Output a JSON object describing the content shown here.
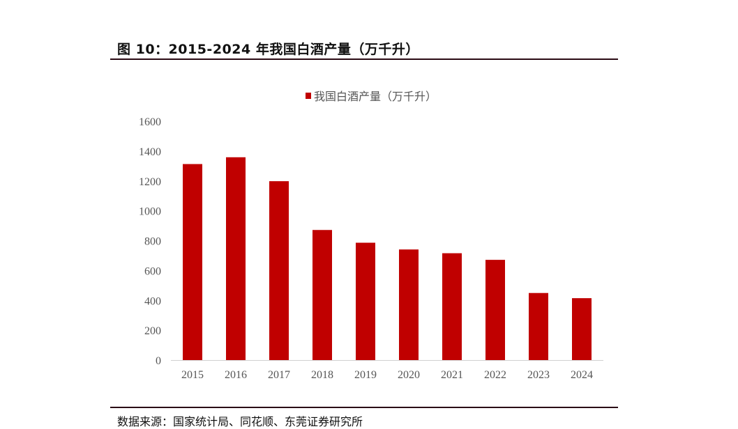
{
  "figure": {
    "title": "图 10：2015-2024 年我国白酒产量（万千升）",
    "source": "数据来源：国家统计局、同花顺、东莞证券研究所"
  },
  "chart_data": {
    "type": "bar",
    "title": "",
    "xlabel": "",
    "ylabel": "",
    "categories": [
      "2015",
      "2016",
      "2017",
      "2018",
      "2019",
      "2020",
      "2021",
      "2022",
      "2023",
      "2024"
    ],
    "series": [
      {
        "name": "我国白酒产量（万千升）",
        "values": [
          1312.8,
          1358.4,
          1198.1,
          871.2,
          785.9,
          740.7,
          715.6,
          671.2,
          449.2,
          414.5
        ],
        "color": "#c00000"
      }
    ],
    "ylim": [
      0,
      1600
    ],
    "yticks": [
      "0",
      "200",
      "400",
      "600",
      "800",
      "1000",
      "1200",
      "1400",
      "1600"
    ],
    "grid": false,
    "legend": "top-center"
  }
}
